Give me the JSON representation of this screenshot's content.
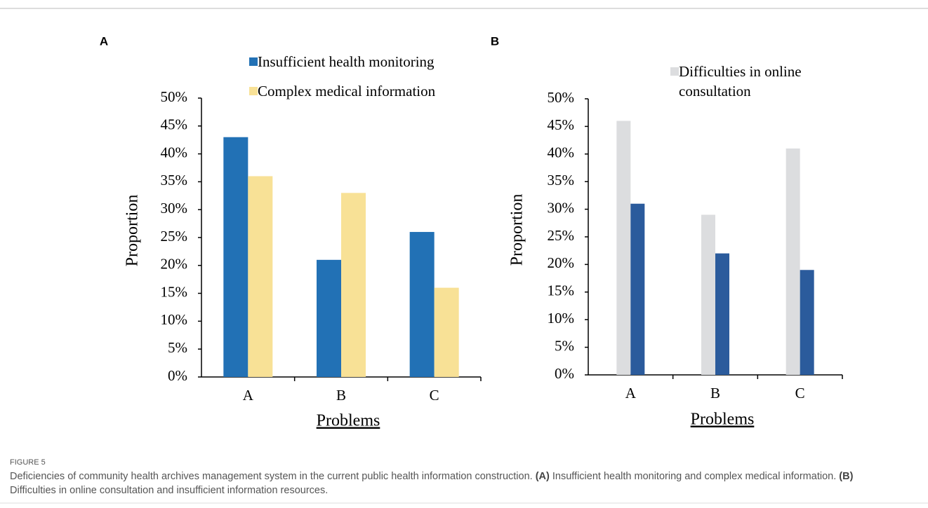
{
  "chart_data": [
    {
      "type": "bar",
      "panel": "A",
      "ylabel": "Proportion",
      "xlabel": "Problems",
      "categories": [
        "A",
        "B",
        "C"
      ],
      "series": [
        {
          "name": "Insufficient health monitoring",
          "color": "#2271b5",
          "values": [
            43,
            21,
            26
          ]
        },
        {
          "name": "Complex medical information",
          "color": "#f8e196",
          "values": [
            36,
            33,
            16
          ]
        }
      ],
      "ylim": [
        0,
        50
      ],
      "yticks": [
        {
          "value": 0,
          "label": "0%"
        },
        {
          "value": 5,
          "label": "5%"
        },
        {
          "value": 10,
          "label": "10%"
        },
        {
          "value": 15,
          "label": "15%"
        },
        {
          "value": 20,
          "label": "20%"
        },
        {
          "value": 25,
          "label": "25%"
        },
        {
          "value": 30,
          "label": "30%"
        },
        {
          "value": 35,
          "label": "35%"
        },
        {
          "value": 40,
          "label": "40%"
        },
        {
          "value": 45,
          "label": "45%"
        },
        {
          "value": 50,
          "label": "50%"
        }
      ]
    },
    {
      "type": "bar",
      "panel": "B",
      "ylabel": "Proportion",
      "xlabel": "Problems",
      "categories": [
        "A",
        "B",
        "C"
      ],
      "series": [
        {
          "name": "Difficulties in online consultation",
          "color": "#dcdddf",
          "values": [
            46,
            29,
            41
          ]
        },
        {
          "color": "#2b5b9c",
          "values": [
            31,
            22,
            19
          ]
        }
      ],
      "ylim": [
        0,
        50
      ],
      "yticks": [
        {
          "value": 0,
          "label": "0%"
        },
        {
          "value": 5,
          "label": "5%"
        },
        {
          "value": 10,
          "label": "10%"
        },
        {
          "value": 15,
          "label": "15%"
        },
        {
          "value": 20,
          "label": "20%"
        },
        {
          "value": 25,
          "label": "25%"
        },
        {
          "value": 30,
          "label": "30%"
        },
        {
          "value": 35,
          "label": "35%"
        },
        {
          "value": 40,
          "label": "40%"
        },
        {
          "value": 45,
          "label": "45%"
        },
        {
          "value": 50,
          "label": "50%"
        }
      ]
    }
  ],
  "figure_label": "FIGURE 5",
  "caption": [
    "Deficiencies of community health archives management system in the current public health information construction. ",
    "(A)",
    " Insufficient health monitoring and complex medical information. ",
    "(B)",
    " Difficulties in online consultation and insufficient information resources."
  ]
}
